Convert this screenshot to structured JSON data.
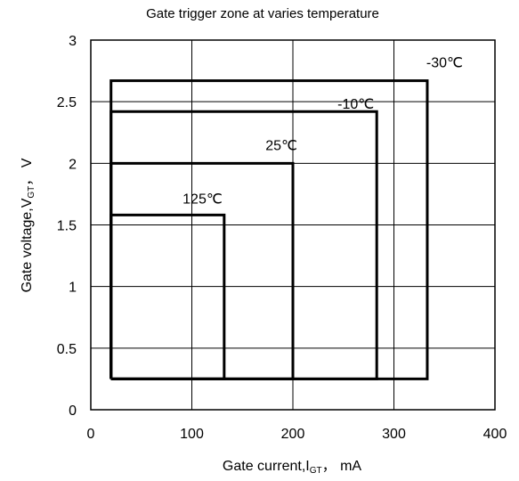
{
  "chart_data": {
    "type": "line",
    "title": "Gate trigger zone at varies temperature",
    "xlabel": {
      "prefix": "Gate current,I",
      "sub": "GT",
      "suffix": "，  mA"
    },
    "ylabel": {
      "prefix": "Gate voltage,V",
      "sub": "GT",
      "suffix": "，  V"
    },
    "xlim": [
      0,
      400
    ],
    "ylim": [
      0,
      3
    ],
    "xticks": [
      0,
      100,
      200,
      300,
      400
    ],
    "yticks": [
      0,
      0.5,
      1,
      1.5,
      2,
      2.5,
      3
    ],
    "ytick_labels": [
      "0",
      "0.5",
      "1",
      "1.5",
      "2",
      "2.5",
      "3"
    ],
    "grid": true,
    "series": [
      {
        "name": "-30℃",
        "x": [
          20,
          20,
          333,
          333,
          20
        ],
        "y": [
          0.25,
          2.67,
          2.67,
          0.25,
          0.25
        ]
      },
      {
        "name": "-10℃",
        "x": [
          20,
          20,
          283,
          283,
          20
        ],
        "y": [
          0.25,
          2.42,
          2.42,
          0.25,
          0.25
        ]
      },
      {
        "name": "25℃",
        "x": [
          20,
          20,
          200,
          200,
          20
        ],
        "y": [
          0.25,
          2.0,
          2.0,
          0.25,
          0.25
        ]
      },
      {
        "name": "125℃",
        "x": [
          20,
          20,
          132,
          132,
          20
        ],
        "y": [
          0.25,
          1.58,
          1.58,
          0.25,
          0.25
        ]
      }
    ]
  }
}
